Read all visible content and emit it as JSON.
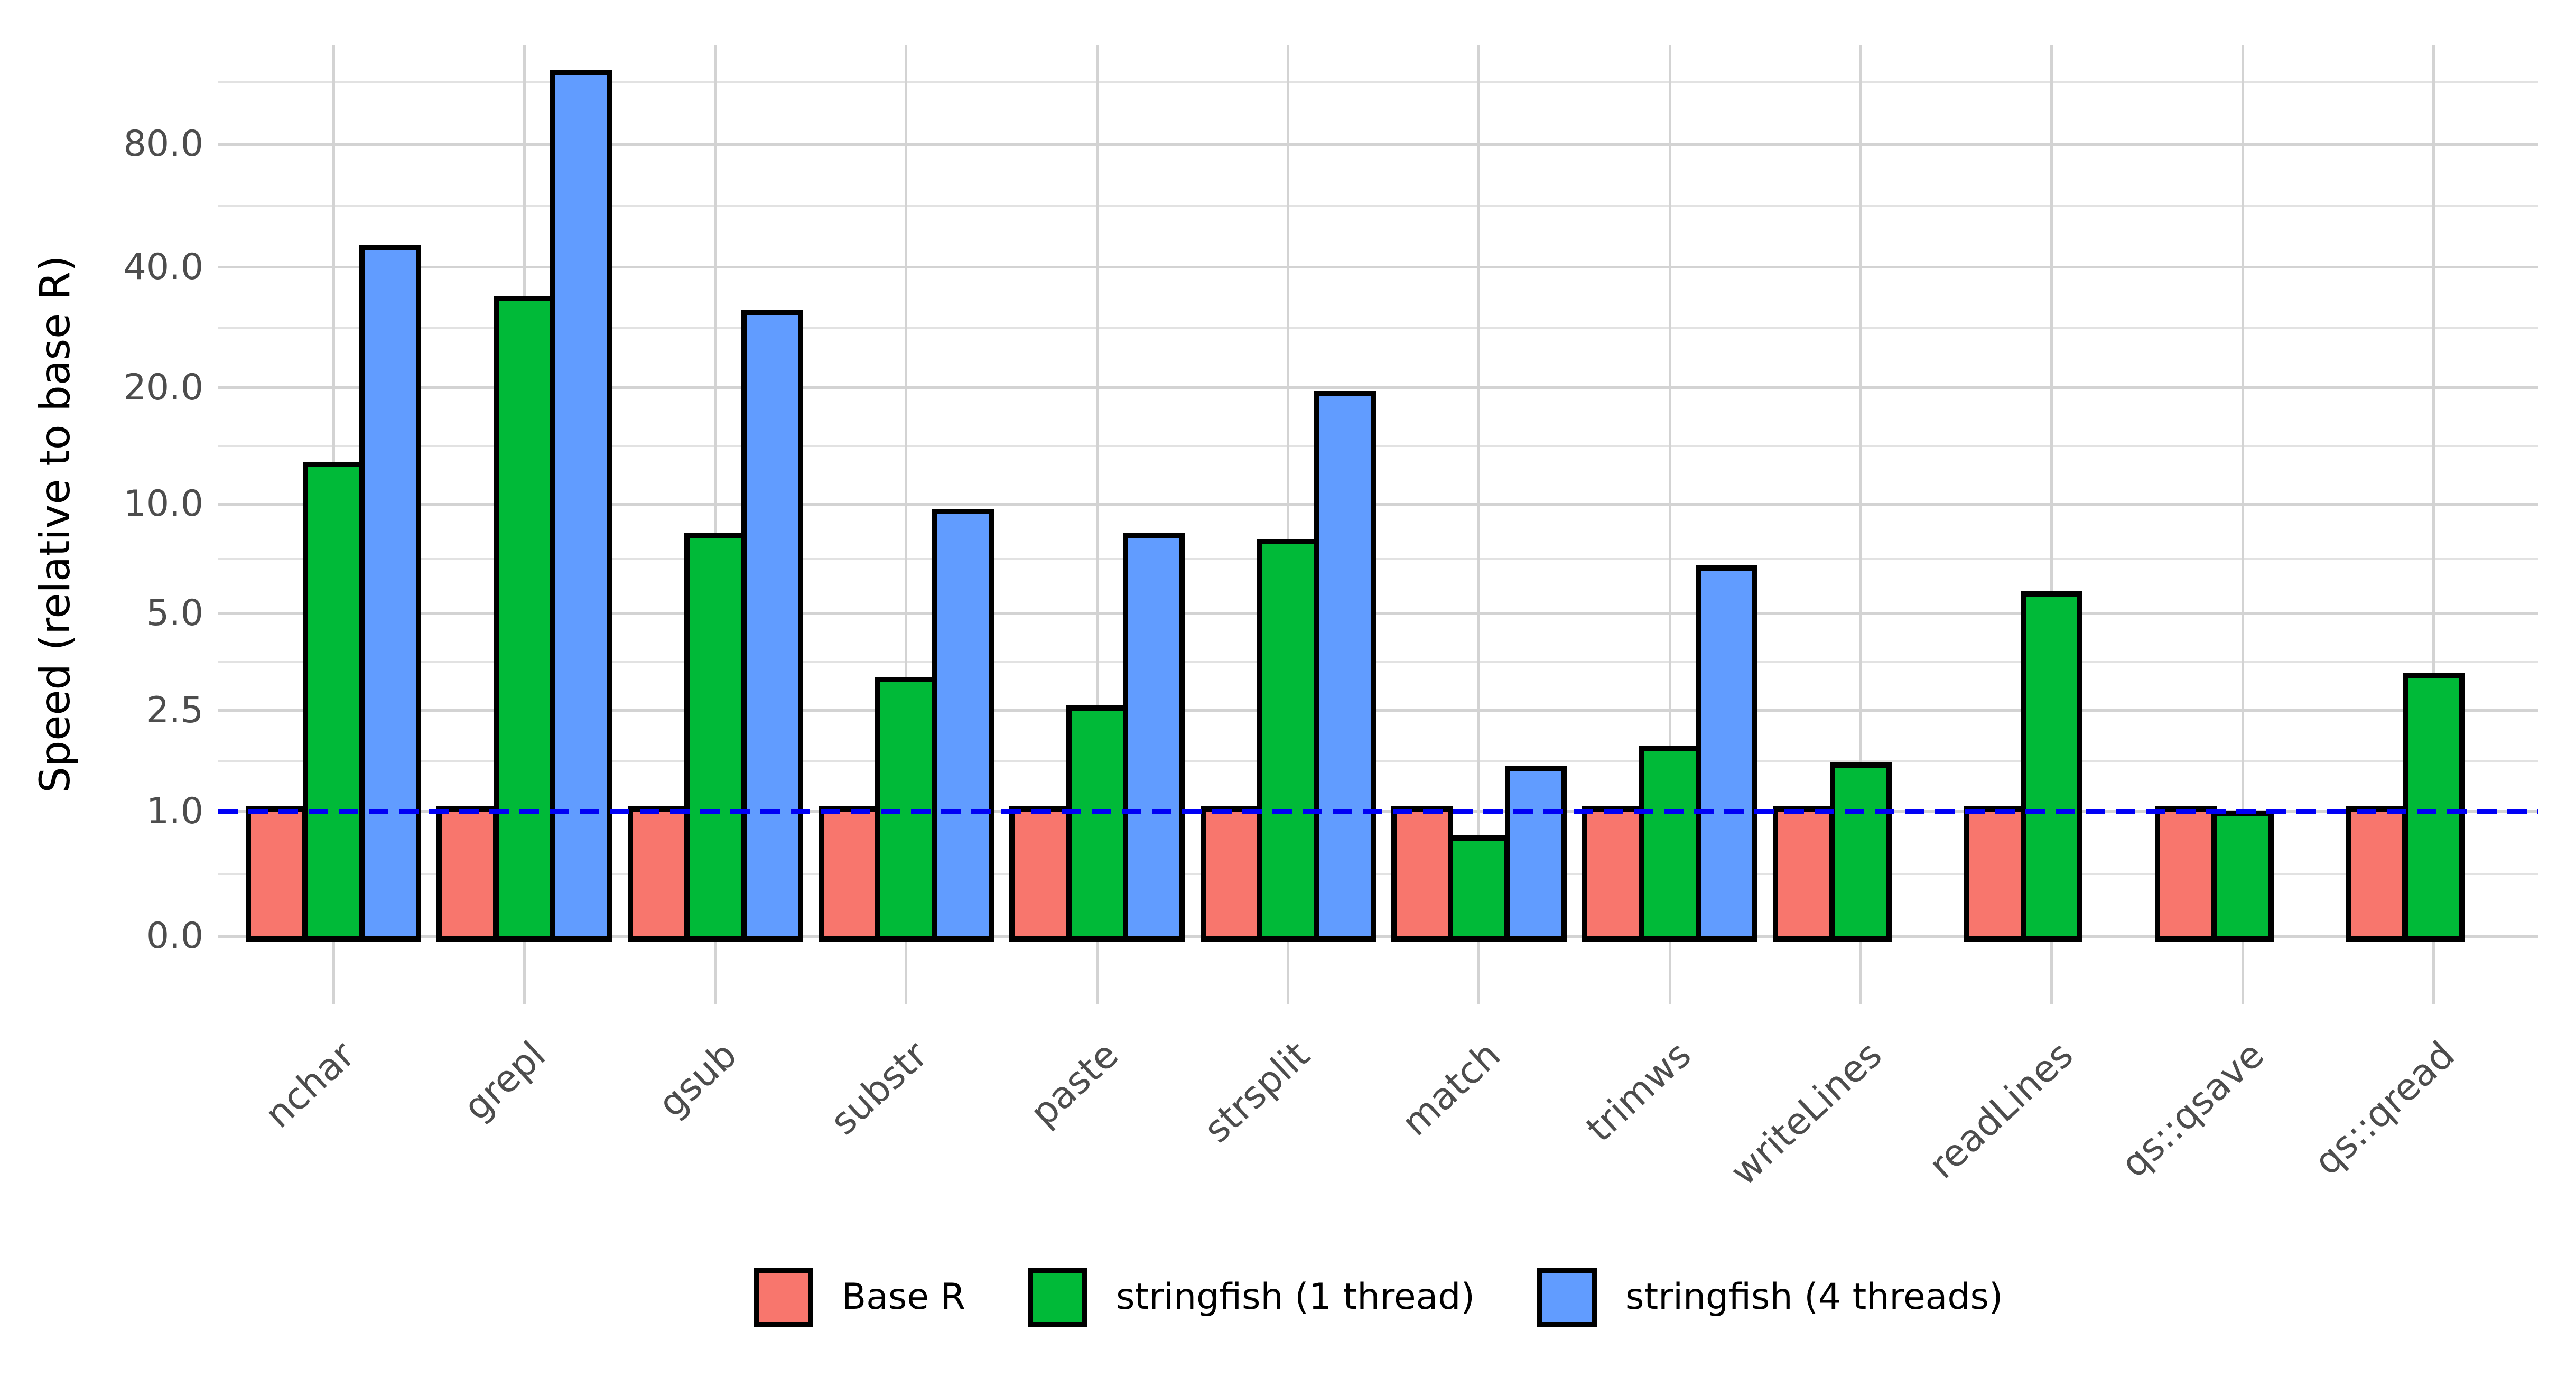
{
  "chart_data": {
    "type": "bar",
    "title": "",
    "xlabel": "",
    "ylabel": "Speed (relative to base R)",
    "y_scale": "pseudo-log (log1p)",
    "ylim": [
      0,
      140
    ],
    "grid": "on",
    "legend_position": "bottom",
    "y_ticks": {
      "values": [
        0,
        1,
        2.5,
        5,
        10,
        20,
        40,
        80
      ],
      "labels": [
        "0.0",
        "1.0",
        "2.5",
        "5.0",
        "10.0",
        "20.0",
        "40.0",
        "80.0"
      ]
    },
    "reference_line": {
      "value": 1.0,
      "color": "#0000F5",
      "style": "dashed"
    },
    "categories": [
      "nchar",
      "grepl",
      "gsub",
      "substr",
      "paste",
      "strsplit",
      "match",
      "trimws",
      "writeLines",
      "readLines",
      "qs::qsave",
      "qs::qread"
    ],
    "series": [
      {
        "name": "Base R",
        "color": "#F8766D",
        "values": [
          1,
          1,
          1,
          1,
          1,
          1,
          1,
          1,
          1,
          1,
          1,
          1
        ]
      },
      {
        "name": "stringfish (1 thread)",
        "color": "#00BA38",
        "values": [
          12.5,
          33,
          8.1,
          3.1,
          2.5,
          7.8,
          0.7,
          1.8,
          1.55,
          5.6,
          0.95,
          3.2
        ]
      },
      {
        "name": "stringfish (4 threads)",
        "color": "#619CFF",
        "values": [
          44,
          118,
          30.5,
          9.4,
          8.1,
          19,
          1.5,
          6.6,
          null,
          null,
          null,
          null
        ]
      }
    ],
    "bar_outline_color": "#000000",
    "gridline_major_color": "#D3D3D3",
    "gridline_minor_color": "#E2E2E2",
    "axis_text_color": "#4d4d4d"
  }
}
